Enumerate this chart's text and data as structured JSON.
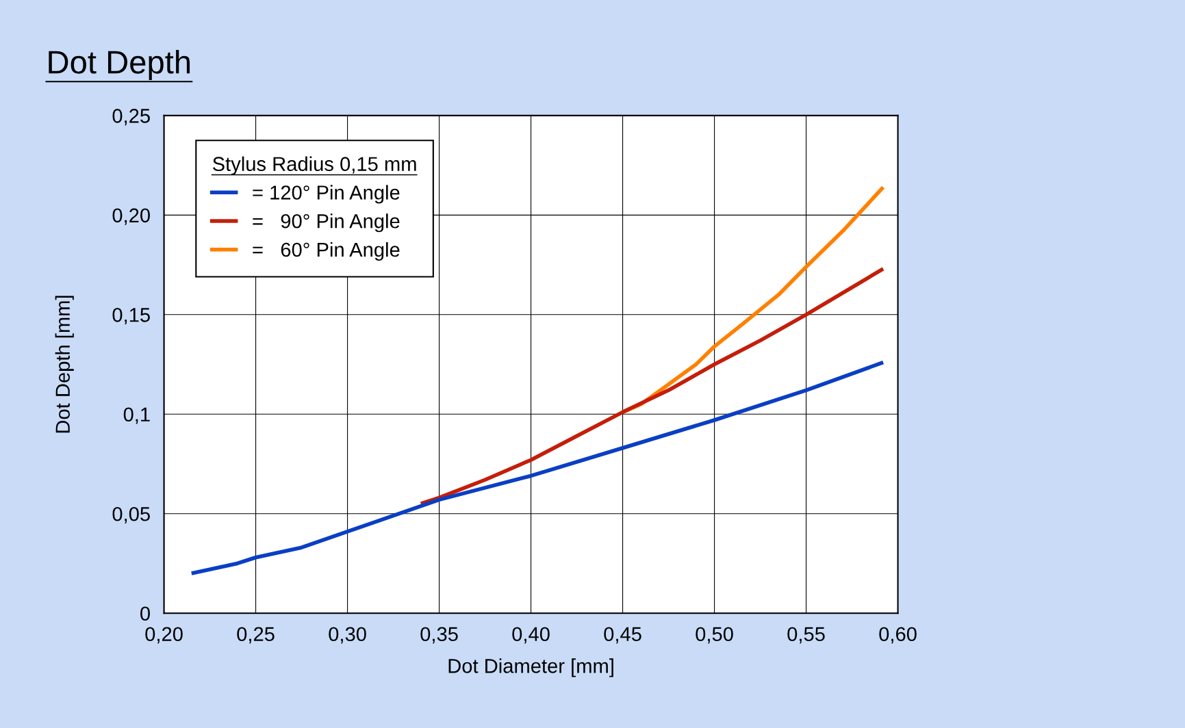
{
  "chart_data": {
    "type": "line",
    "title": "Dot Depth",
    "xlabel": "Dot Diameter [mm]",
    "ylabel": "Dot Depth [mm]",
    "legend_title": "Stylus Radius 0,15 mm",
    "legend": "top left",
    "grid": true,
    "line_style": "solid",
    "marker": "none",
    "xlim": [
      0.2,
      0.6
    ],
    "ylim": [
      0,
      0.25
    ],
    "xticks": [
      {
        "value": 0.2,
        "label": "0,20"
      },
      {
        "value": 0.25,
        "label": "0,25"
      },
      {
        "value": 0.3,
        "label": "0,30"
      },
      {
        "value": 0.35,
        "label": "0,35"
      },
      {
        "value": 0.4,
        "label": "0,40"
      },
      {
        "value": 0.45,
        "label": "0,45"
      },
      {
        "value": 0.5,
        "label": "0,50"
      },
      {
        "value": 0.55,
        "label": "0,55"
      },
      {
        "value": 0.6,
        "label": "0,60"
      }
    ],
    "yticks": [
      0,
      {
        "value": 0.05,
        "label": "0,05"
      },
      {
        "value": 0.1,
        "label": "0,1"
      },
      {
        "value": 0.15,
        "label": "0,15"
      },
      {
        "value": 0.2,
        "label": "0,20"
      },
      {
        "value": 0.25,
        "label": "0,25"
      }
    ],
    "series": [
      {
        "name": "= 120° Pin Angle",
        "color": "#0a3fc4",
        "x": [
          0.215,
          0.24,
          0.25,
          0.275,
          0.3,
          0.325,
          0.35,
          0.4,
          0.45,
          0.5,
          0.55,
          0.592
        ],
        "values": [
          0.02,
          0.025,
          0.028,
          0.033,
          0.041,
          0.049,
          0.057,
          0.069,
          0.083,
          0.097,
          0.112,
          0.126
        ]
      },
      {
        "name": "=   90° Pin Angle",
        "color": "#c41e0a",
        "x": [
          0.34,
          0.35,
          0.375,
          0.4,
          0.425,
          0.45,
          0.475,
          0.5,
          0.525,
          0.55,
          0.592
        ],
        "values": [
          0.055,
          0.058,
          0.067,
          0.077,
          0.089,
          0.101,
          0.112,
          0.125,
          0.137,
          0.15,
          0.173
        ]
      },
      {
        "name": "=   60° Pin Angle",
        "color": "#ff8000",
        "x": [
          0.45,
          0.46,
          0.475,
          0.49,
          0.5,
          0.515,
          0.535,
          0.55,
          0.57,
          0.592
        ],
        "values": [
          0.101,
          0.105,
          0.115,
          0.125,
          0.134,
          0.145,
          0.16,
          0.174,
          0.192,
          0.214
        ]
      }
    ]
  }
}
